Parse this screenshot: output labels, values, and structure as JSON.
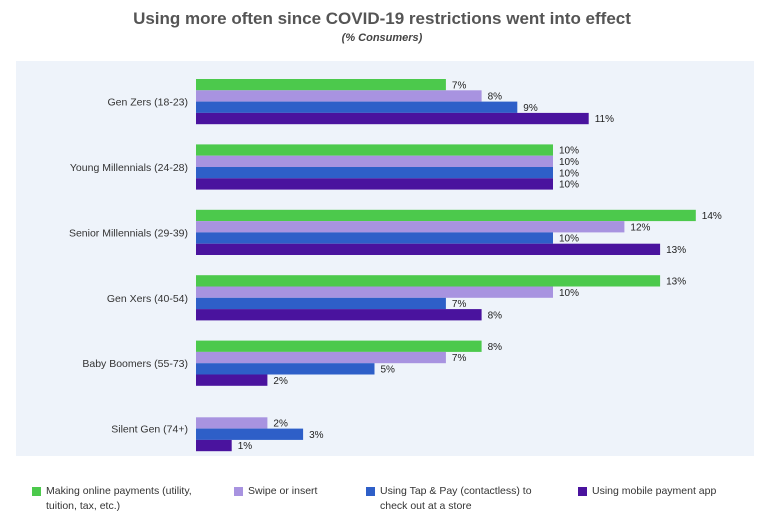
{
  "chart_data": {
    "type": "bar",
    "orientation": "horizontal",
    "title": "Using more often since COVID-19 restrictions went into effect",
    "subtitle": "(% Consumers)",
    "categories": [
      "Gen Zers (18-23)",
      "Young Millennials (24-28)",
      "Senior Millennials (29-39)",
      "Gen Xers (40-54)",
      "Baby Boomers (55-73)",
      "Silent Gen (74+)"
    ],
    "series": [
      {
        "name": "Making online payments (utility, tuition, tax, etc.)",
        "color": "#4cc94c",
        "values": [
          7,
          10,
          14,
          13,
          8,
          null
        ],
        "labels": [
          "7%",
          "10%",
          "14%",
          "13%",
          "8%",
          ""
        ]
      },
      {
        "name": "Swipe or insert",
        "color": "#a893e0",
        "values": [
          8,
          10,
          12,
          10,
          7,
          2
        ],
        "labels": [
          "8%",
          "10%",
          "12%",
          "10%",
          "7%",
          "2%"
        ]
      },
      {
        "name": "Using Tap & Pay (contactless) to check out at a store",
        "color": "#2e5fc8",
        "values": [
          9,
          10,
          10,
          7,
          5,
          3
        ],
        "labels": [
          "9%",
          "10%",
          "10%",
          "7%",
          "5%",
          "3%"
        ]
      },
      {
        "name": "Using mobile payment app",
        "color": "#4a139e",
        "values": [
          11,
          10,
          13,
          8,
          2,
          1
        ],
        "labels": [
          "11%",
          "10%",
          "13%",
          "8%",
          "2%",
          "1%"
        ]
      }
    ],
    "xlim": [
      0,
      14
    ],
    "grid": false,
    "legend_position": "bottom"
  },
  "legend_items": [
    {
      "label": "Making online payments (utility, tuition, tax, etc.)",
      "color": "#4cc94c"
    },
    {
      "label": "Swipe or insert",
      "color": "#a893e0"
    },
    {
      "label": "Using Tap & Pay (contactless) to check out at a store",
      "color": "#2e5fc8"
    },
    {
      "label": "Using mobile payment app",
      "color": "#4a139e"
    }
  ]
}
